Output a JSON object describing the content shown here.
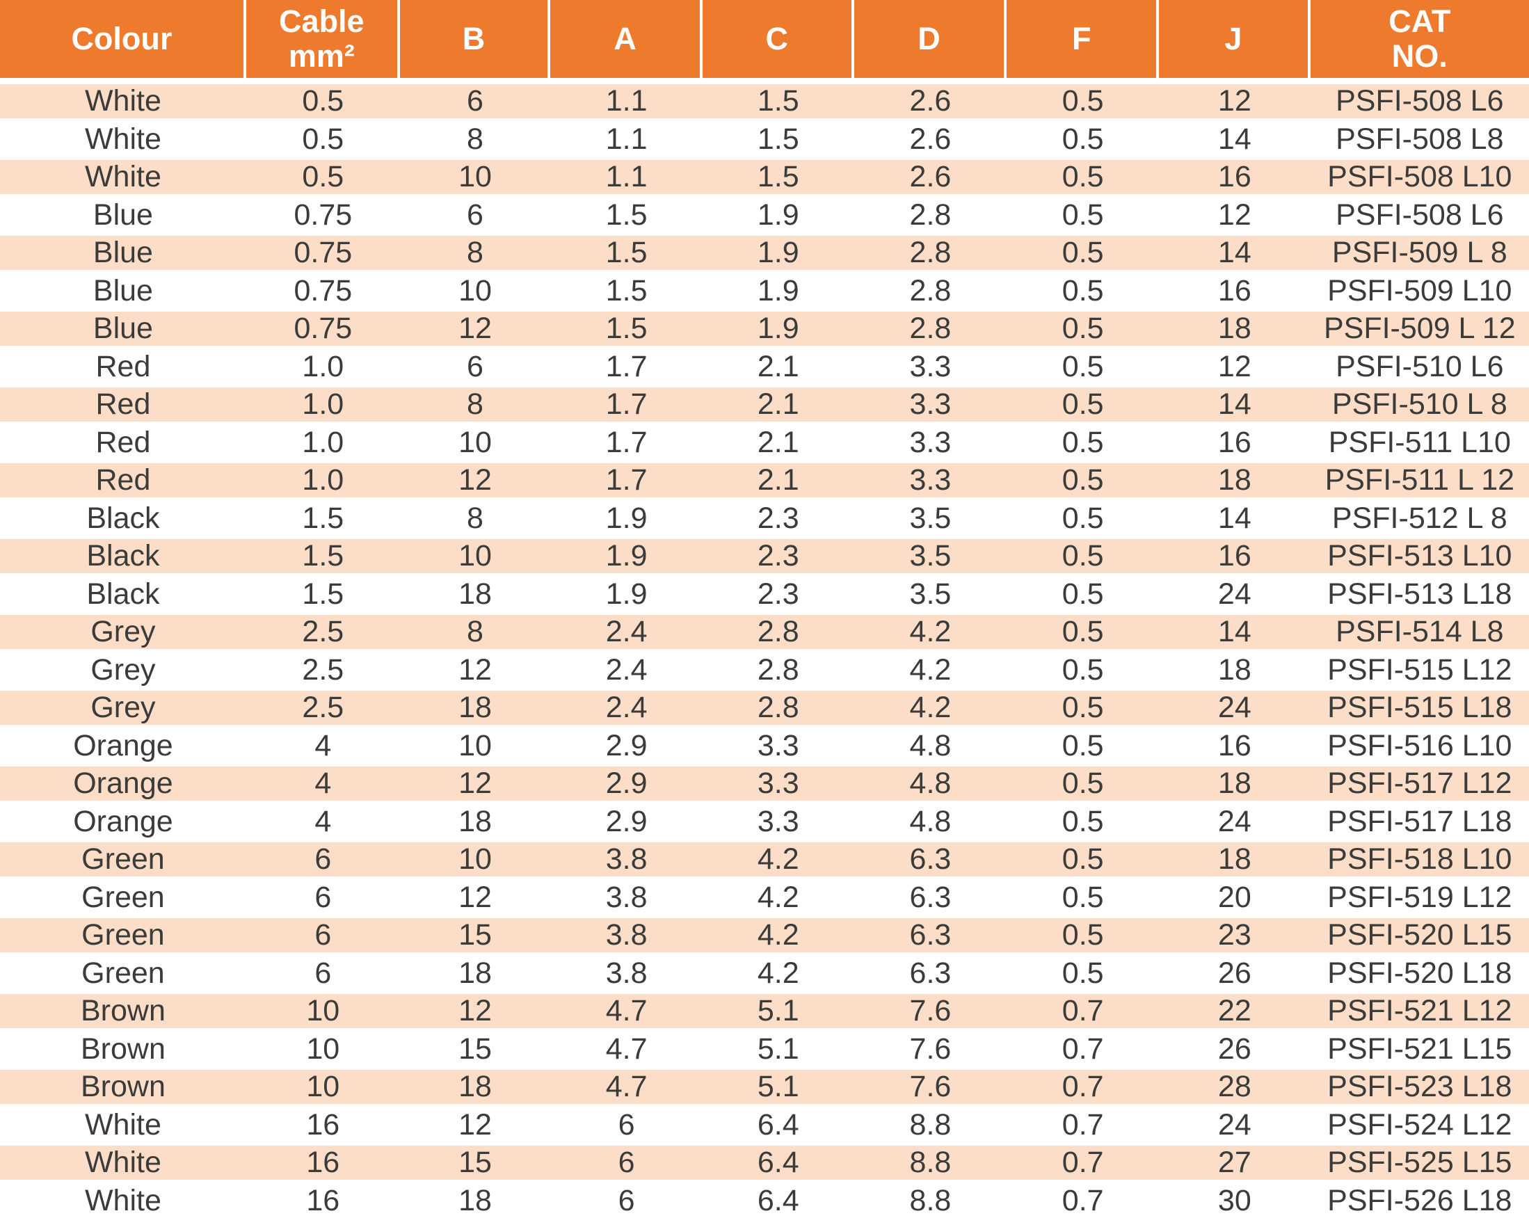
{
  "table": {
    "columns": [
      {
        "id": "colour",
        "lines": [
          "Colour"
        ]
      },
      {
        "id": "cable-mm2",
        "lines": [
          "Cable",
          "mm²"
        ]
      },
      {
        "id": "b",
        "lines": [
          "B"
        ]
      },
      {
        "id": "a",
        "lines": [
          "A"
        ]
      },
      {
        "id": "c",
        "lines": [
          "C"
        ]
      },
      {
        "id": "d",
        "lines": [
          "D"
        ]
      },
      {
        "id": "f",
        "lines": [
          "F"
        ]
      },
      {
        "id": "j",
        "lines": [
          "J"
        ]
      },
      {
        "id": "cat-no",
        "lines": [
          "CAT",
          "NO."
        ]
      }
    ],
    "rows": [
      [
        "White",
        "0.5",
        "6",
        "1.1",
        "1.5",
        "2.6",
        "0.5",
        "12",
        "PSFI-508 L6"
      ],
      [
        "White",
        "0.5",
        "8",
        "1.1",
        "1.5",
        "2.6",
        "0.5",
        "14",
        "PSFI-508 L8"
      ],
      [
        "White",
        "0.5",
        "10",
        "1.1",
        "1.5",
        "2.6",
        "0.5",
        "16",
        "PSFI-508 L10"
      ],
      [
        "Blue",
        "0.75",
        "6",
        "1.5",
        "1.9",
        "2.8",
        "0.5",
        "12",
        "PSFI-508 L6"
      ],
      [
        "Blue",
        "0.75",
        "8",
        "1.5",
        "1.9",
        "2.8",
        "0.5",
        "14",
        "PSFI-509 L 8"
      ],
      [
        "Blue",
        "0.75",
        "10",
        "1.5",
        "1.9",
        "2.8",
        "0.5",
        "16",
        "PSFI-509 L10"
      ],
      [
        "Blue",
        "0.75",
        "12",
        "1.5",
        "1.9",
        "2.8",
        "0.5",
        "18",
        "PSFI-509 L 12"
      ],
      [
        "Red",
        "1.0",
        "6",
        "1.7",
        "2.1",
        "3.3",
        "0.5",
        "12",
        "PSFI-510 L6"
      ],
      [
        "Red",
        "1.0",
        "8",
        "1.7",
        "2.1",
        "3.3",
        "0.5",
        "14",
        "PSFI-510 L 8"
      ],
      [
        "Red",
        "1.0",
        "10",
        "1.7",
        "2.1",
        "3.3",
        "0.5",
        "16",
        "PSFI-511 L10"
      ],
      [
        "Red",
        "1.0",
        "12",
        "1.7",
        "2.1",
        "3.3",
        "0.5",
        "18",
        "PSFI-511 L 12"
      ],
      [
        "Black",
        "1.5",
        "8",
        "1.9",
        "2.3",
        "3.5",
        "0.5",
        "14",
        "PSFI-512 L 8"
      ],
      [
        "Black",
        "1.5",
        "10",
        "1.9",
        "2.3",
        "3.5",
        "0.5",
        "16",
        "PSFI-513 L10"
      ],
      [
        "Black",
        "1.5",
        "18",
        "1.9",
        "2.3",
        "3.5",
        "0.5",
        "24",
        "PSFI-513 L18"
      ],
      [
        "Grey",
        "2.5",
        "8",
        "2.4",
        "2.8",
        "4.2",
        "0.5",
        "14",
        "PSFI-514 L8"
      ],
      [
        "Grey",
        "2.5",
        "12",
        "2.4",
        "2.8",
        "4.2",
        "0.5",
        "18",
        "PSFI-515 L12"
      ],
      [
        "Grey",
        "2.5",
        "18",
        "2.4",
        "2.8",
        "4.2",
        "0.5",
        "24",
        "PSFI-515 L18"
      ],
      [
        "Orange",
        "4",
        "10",
        "2.9",
        "3.3",
        "4.8",
        "0.5",
        "16",
        "PSFI-516 L10"
      ],
      [
        "Orange",
        "4",
        "12",
        "2.9",
        "3.3",
        "4.8",
        "0.5",
        "18",
        "PSFI-517 L12"
      ],
      [
        "Orange",
        "4",
        "18",
        "2.9",
        "3.3",
        "4.8",
        "0.5",
        "24",
        "PSFI-517 L18"
      ],
      [
        "Green",
        "6",
        "10",
        "3.8",
        "4.2",
        "6.3",
        "0.5",
        "18",
        "PSFI-518 L10"
      ],
      [
        "Green",
        "6",
        "12",
        "3.8",
        "4.2",
        "6.3",
        "0.5",
        "20",
        "PSFI-519 L12"
      ],
      [
        "Green",
        "6",
        "15",
        "3.8",
        "4.2",
        "6.3",
        "0.5",
        "23",
        "PSFI-520 L15"
      ],
      [
        "Green",
        "6",
        "18",
        "3.8",
        "4.2",
        "6.3",
        "0.5",
        "26",
        "PSFI-520 L18"
      ],
      [
        "Brown",
        "10",
        "12",
        "4.7",
        "5.1",
        "7.6",
        "0.7",
        "22",
        "PSFI-521 L12"
      ],
      [
        "Brown",
        "10",
        "15",
        "4.7",
        "5.1",
        "7.6",
        "0.7",
        "26",
        "PSFI-521 L15"
      ],
      [
        "Brown",
        "10",
        "18",
        "4.7",
        "5.1",
        "7.6",
        "0.7",
        "28",
        "PSFI-523 L18"
      ],
      [
        "White",
        "16",
        "12",
        "6",
        "6.4",
        "8.8",
        "0.7",
        "24",
        "PSFI-524 L12"
      ],
      [
        "White",
        "16",
        "15",
        "6",
        "6.4",
        "8.8",
        "0.7",
        "27",
        "PSFI-525 L15"
      ],
      [
        "White",
        "16",
        "18",
        "6",
        "6.4",
        "8.8",
        "0.7",
        "30",
        "PSFI-526 L18"
      ]
    ]
  },
  "colors": {
    "header_bg": "#EE7A2E",
    "row_shaded_bg": "#FBDDC8",
    "row_plain_bg": "#FFFFFF",
    "header_text": "#FFFFFF",
    "body_text": "#3B3B3A"
  }
}
